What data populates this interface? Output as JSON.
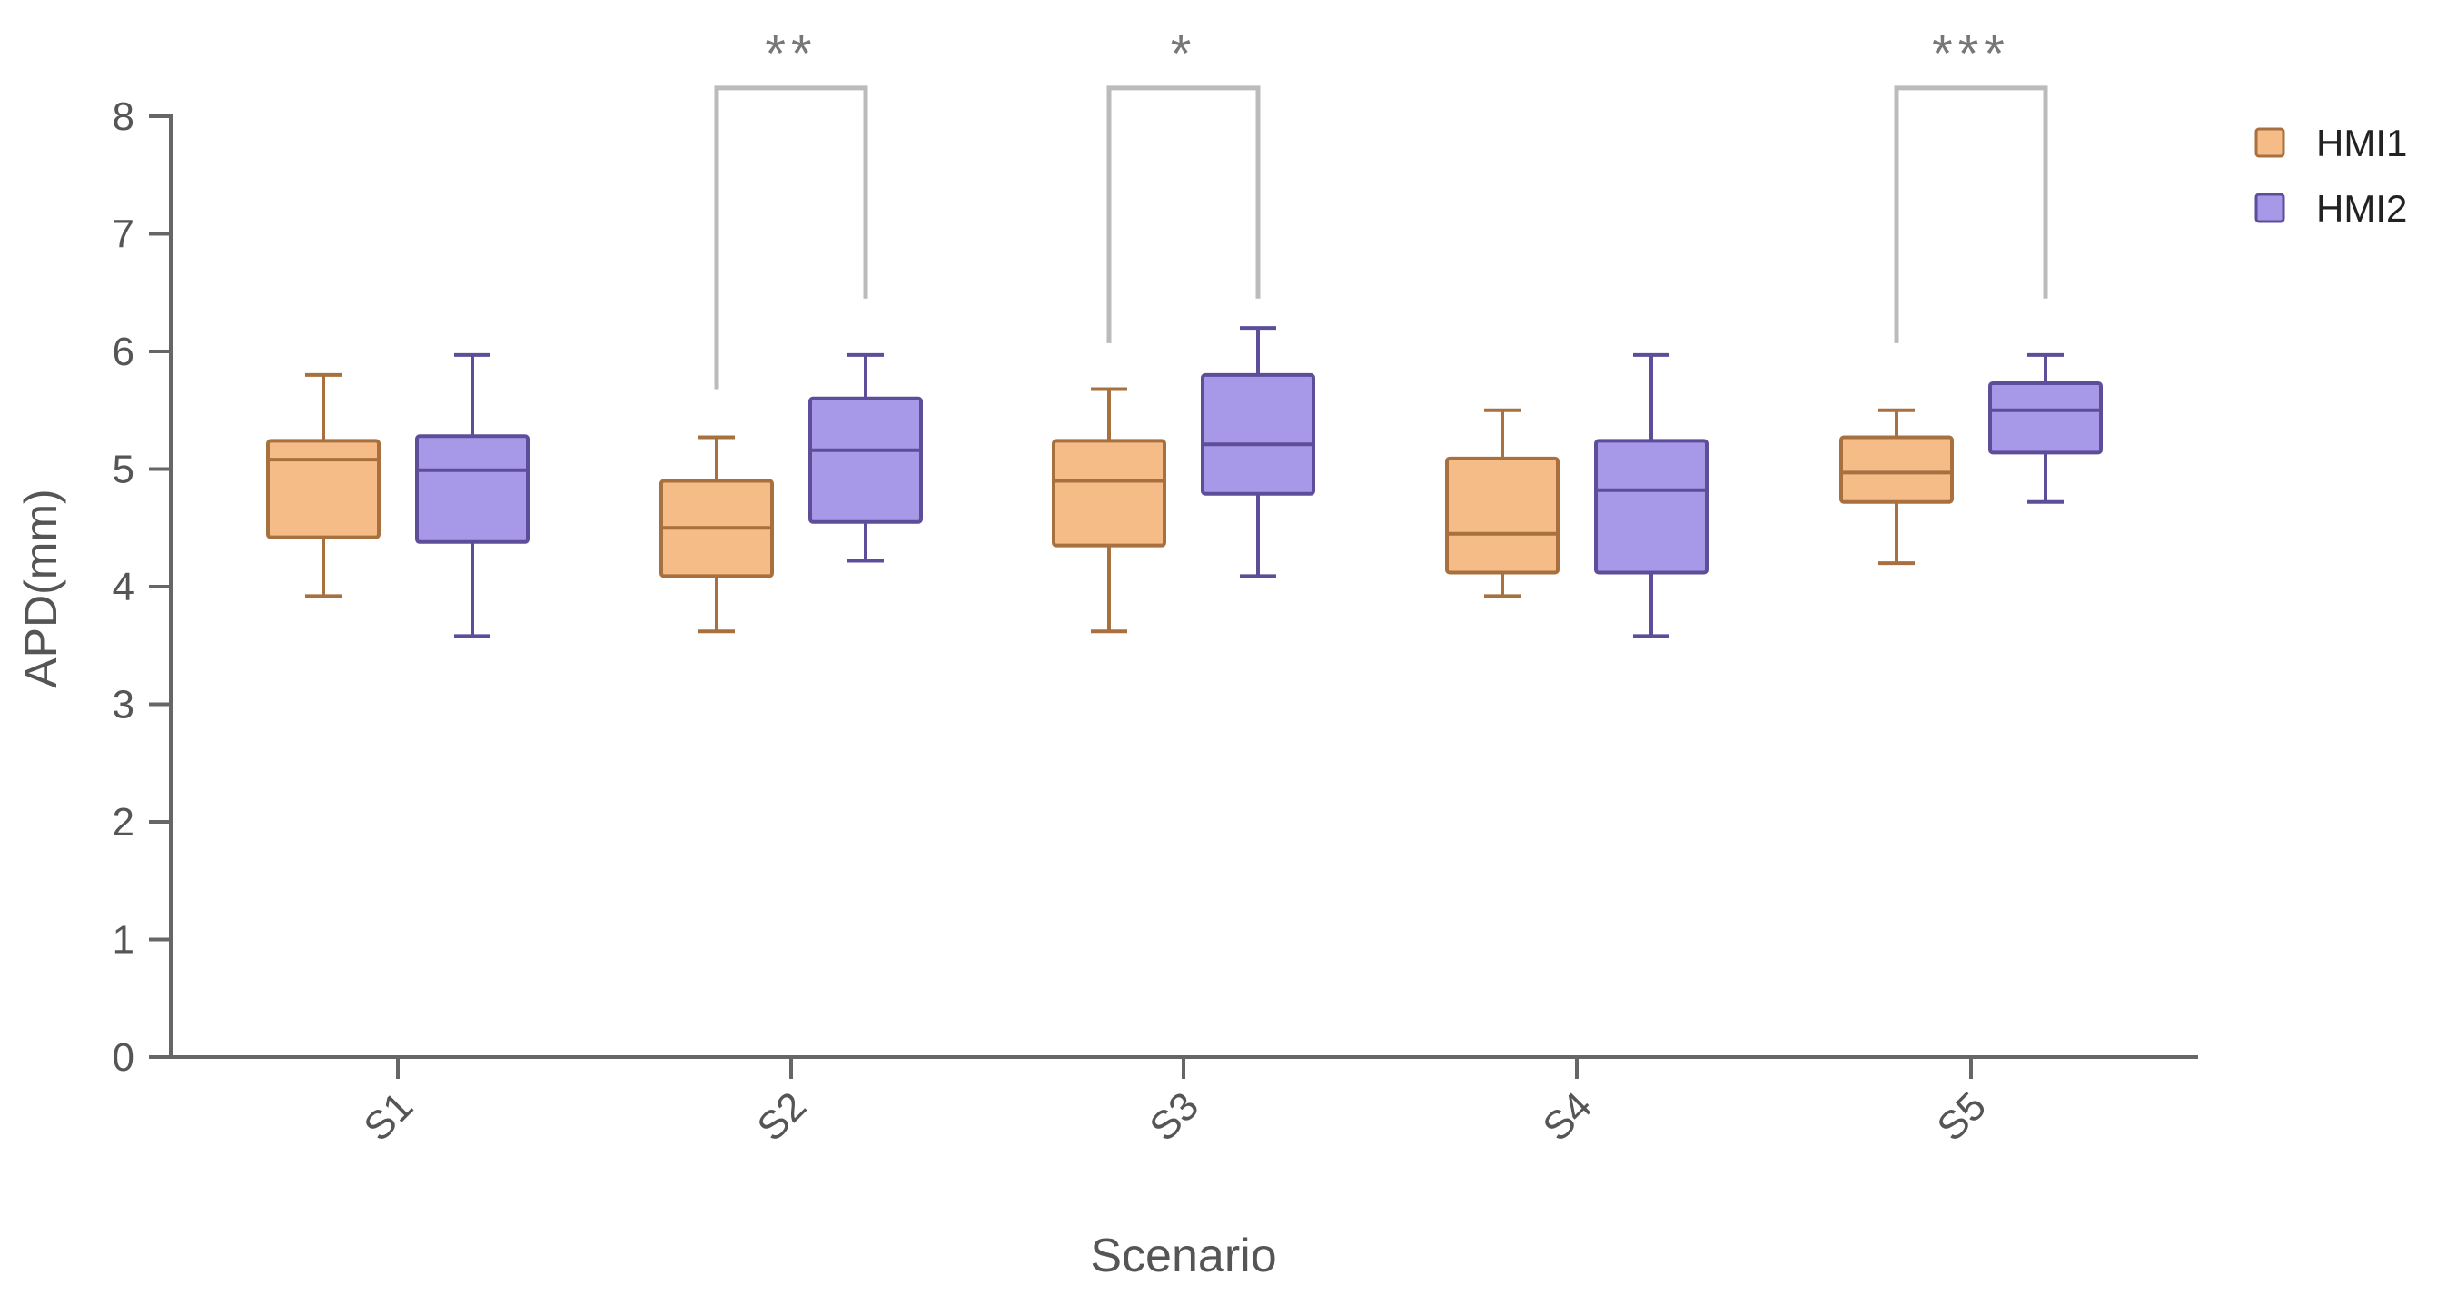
{
  "chart_data": {
    "type": "boxplot",
    "title": "",
    "xlabel": "Scenario",
    "ylabel": "APD(mm)",
    "ylim": [
      0,
      8
    ],
    "yticks": [
      0,
      1,
      2,
      3,
      4,
      5,
      6,
      7,
      8
    ],
    "ytick_labels": [
      "0",
      "1",
      "2",
      "3",
      "4",
      "5",
      "6",
      "7",
      "8"
    ],
    "grid": false,
    "legend_position": "top-right",
    "categories": [
      "S1",
      "S2",
      "S3",
      "S4",
      "S5"
    ],
    "series": [
      {
        "name": "HMI1",
        "fill": "#F5BC88",
        "stroke": "#A8703F",
        "boxes": [
          {
            "min": 3.92,
            "q1": 4.42,
            "median": 5.08,
            "q3": 5.24,
            "max": 5.8
          },
          {
            "min": 3.62,
            "q1": 4.09,
            "median": 4.5,
            "q3": 4.9,
            "max": 5.27
          },
          {
            "min": 3.62,
            "q1": 4.35,
            "median": 4.9,
            "q3": 5.24,
            "max": 5.68
          },
          {
            "min": 3.92,
            "q1": 4.12,
            "median": 4.45,
            "q3": 5.09,
            "max": 5.5
          },
          {
            "min": 4.2,
            "q1": 4.72,
            "median": 4.97,
            "q3": 5.27,
            "max": 5.5
          }
        ]
      },
      {
        "name": "HMI2",
        "fill": "#A898E8",
        "stroke": "#5E4E9A",
        "boxes": [
          {
            "min": 3.58,
            "q1": 4.38,
            "median": 4.99,
            "q3": 5.28,
            "max": 5.97
          },
          {
            "min": 4.22,
            "q1": 4.55,
            "median": 5.16,
            "q3": 5.6,
            "max": 5.97
          },
          {
            "min": 4.09,
            "q1": 4.79,
            "median": 5.21,
            "q3": 5.8,
            "max": 6.2
          },
          {
            "min": 3.58,
            "q1": 4.12,
            "median": 4.82,
            "q3": 5.24,
            "max": 5.97
          },
          {
            "min": 4.72,
            "q1": 5.14,
            "median": 5.5,
            "q3": 5.73,
            "max": 5.97
          }
        ]
      }
    ],
    "significance": [
      {
        "category": "S2",
        "label": "**",
        "left_start": 5.68,
        "right_start": 6.45
      },
      {
        "category": "S3",
        "label": "*",
        "left_start": 6.07,
        "right_start": 6.45
      },
      {
        "category": "S5",
        "label": "***",
        "left_start": 6.07,
        "right_start": 6.45
      }
    ],
    "bracket_top": 8.24,
    "colors": {
      "axis": "#666666",
      "text": "#555555",
      "bracket": "#BBBBBB"
    }
  }
}
